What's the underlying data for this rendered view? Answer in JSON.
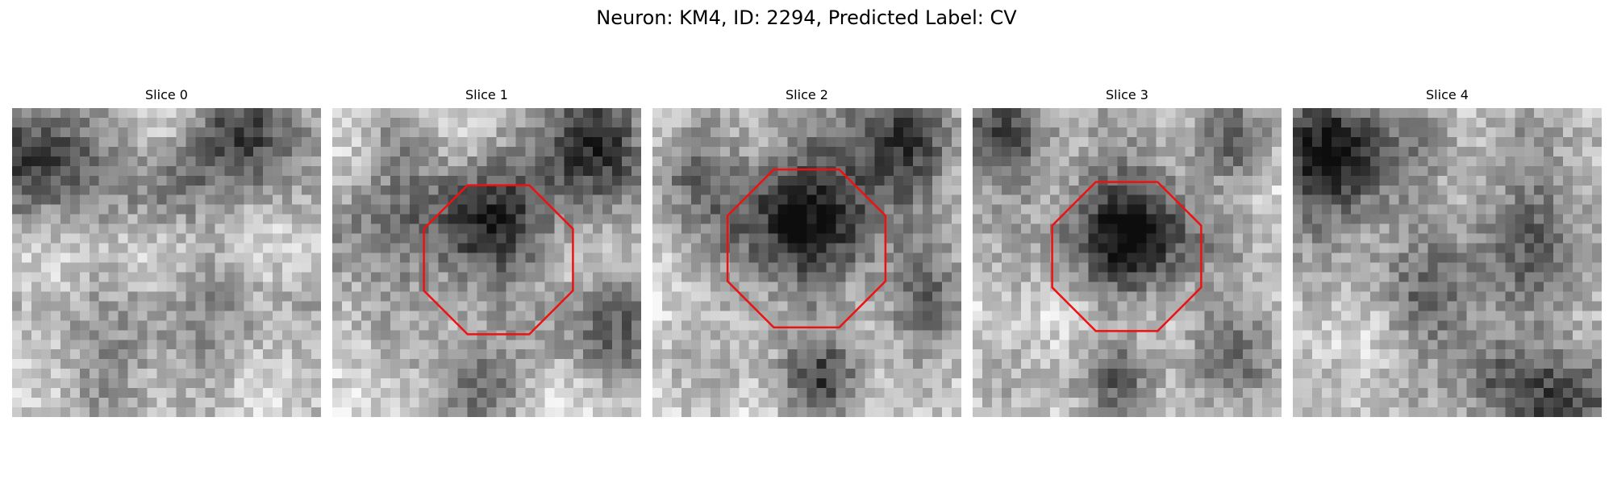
{
  "figure": {
    "title": "Neuron: KM4, ID: 2294, Predicted Label: CV"
  },
  "colors": {
    "outline": "#ee1111",
    "background": "#ffffff"
  },
  "panels": [
    {
      "title": "Slice 0",
      "has_outline": false
    },
    {
      "title": "Slice 1",
      "has_outline": true
    },
    {
      "title": "Slice 2",
      "has_outline": true
    },
    {
      "title": "Slice 3",
      "has_outline": true
    },
    {
      "title": "Slice 4",
      "has_outline": false
    }
  ]
}
